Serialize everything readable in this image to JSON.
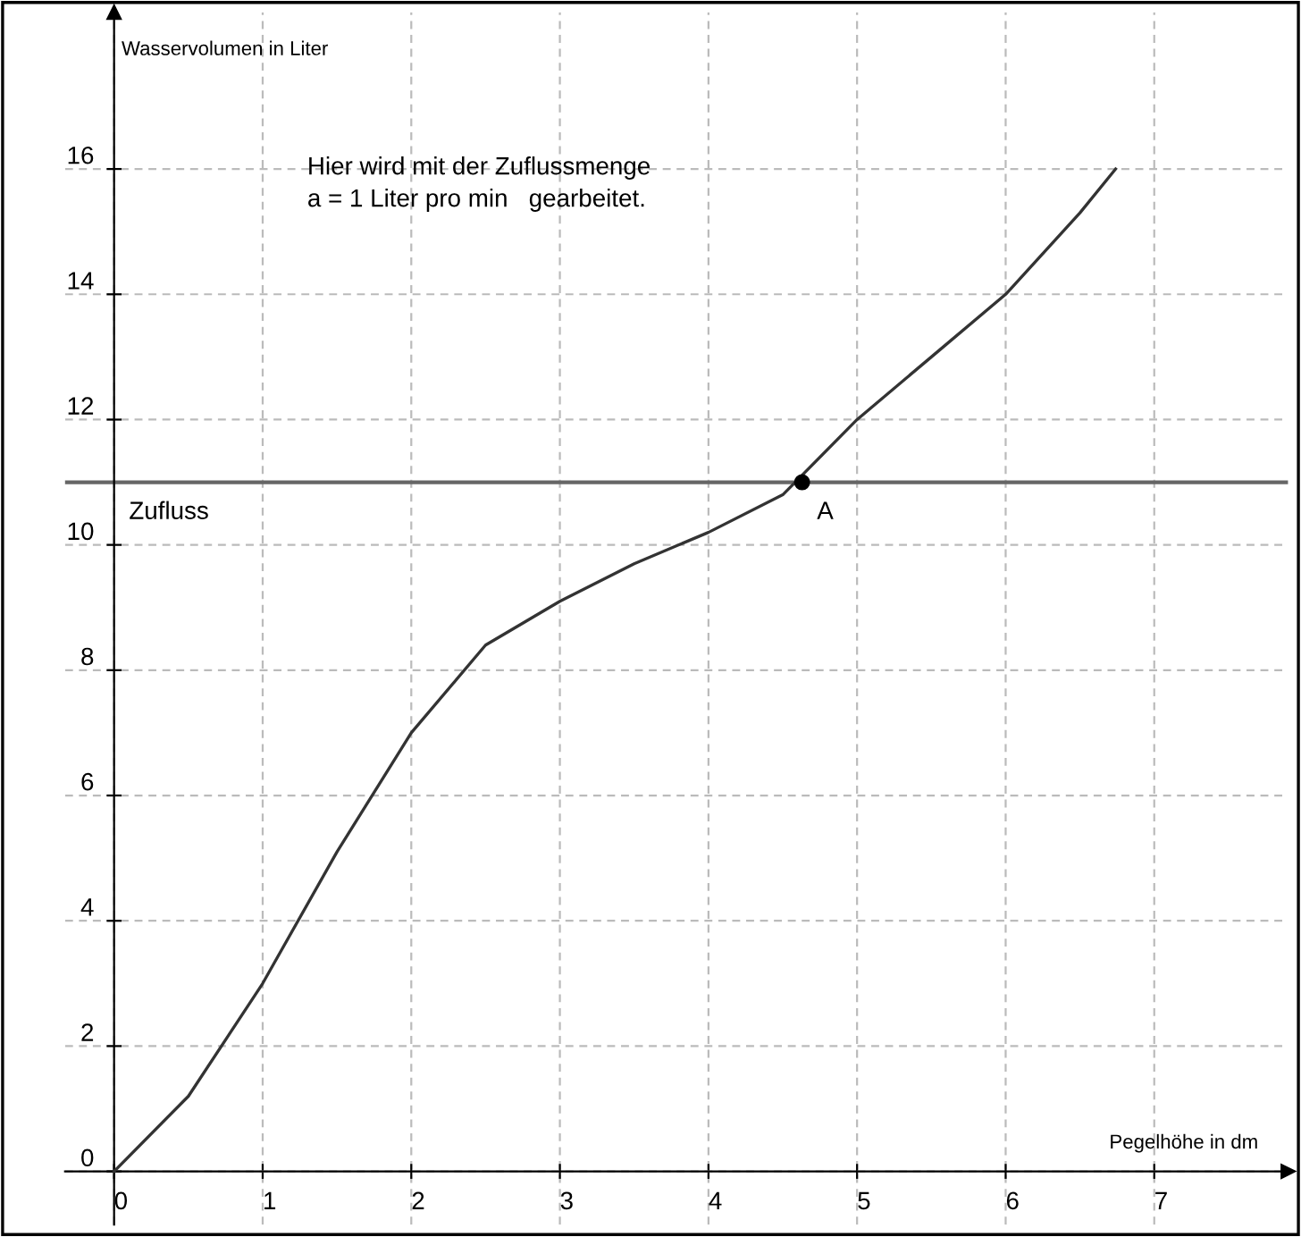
{
  "chart_data": {
    "type": "line",
    "xlabel": "Pegelhöhe in dm",
    "ylabel": "Wasservolumen in Liter",
    "xlim": [
      -0.33,
      7.9
    ],
    "ylim": [
      -0.85,
      18.5
    ],
    "xticks": [
      0,
      1,
      2,
      3,
      4,
      5,
      6,
      7
    ],
    "yticks": [
      0,
      2,
      4,
      6,
      8,
      10,
      12,
      14,
      16
    ],
    "grid": true,
    "series": [
      {
        "color": "#333333",
        "x": [
          0,
          0.5,
          1,
          1.5,
          2,
          2.5,
          3,
          3.5,
          4,
          4.5,
          5,
          5.5,
          6,
          6.5,
          6.74
        ],
        "values": [
          0,
          1.2,
          3.0,
          5.1,
          7.0,
          8.4,
          9.1,
          9.7,
          10.2,
          10.8,
          12.0,
          13.0,
          14.0,
          15.3,
          16.0
        ]
      },
      {
        "type": "scatter",
        "name": "A",
        "color": "#000000",
        "marker": "circle",
        "x": [
          4.63
        ],
        "values": [
          11.0
        ]
      }
    ],
    "ref_lines": [
      {
        "axis": "y",
        "value": 11,
        "label": "Zufluss",
        "color": "#666666"
      }
    ],
    "annotations": [
      "Hier wird mit der Zuflussmenge\na = 1 Liter pro min   gearbeitet."
    ]
  }
}
